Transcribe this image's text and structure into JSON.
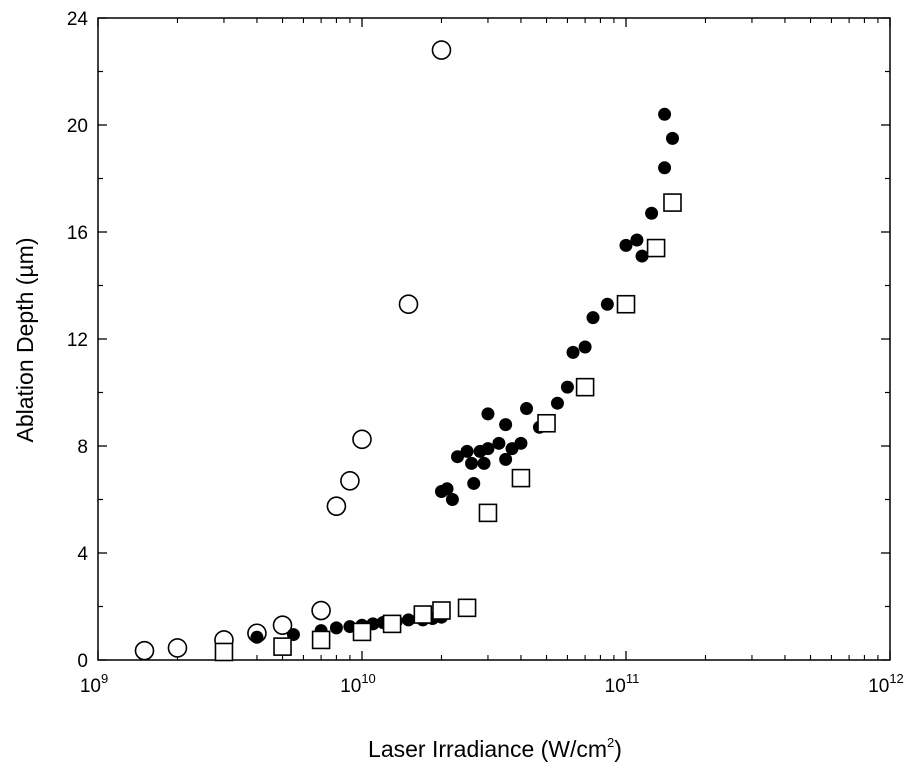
{
  "chart_data": {
    "type": "scatter",
    "xlabel": "Laser Irradiance (W/cm²)",
    "xlabel_parts": {
      "main": "Laser Irradiance (W/cm",
      "sup": "2",
      "close": ")"
    },
    "ylabel": "Ablation Depth (µm)",
    "x_scale": "log",
    "xlim": [
      1000000000.0,
      1000000000000.0
    ],
    "ylim": [
      0,
      24
    ],
    "grid": false,
    "x_ticks": [
      {
        "value": 1000000000.0,
        "base": "10",
        "exp": "9"
      },
      {
        "value": 10000000000.0,
        "base": "10",
        "exp": "10"
      },
      {
        "value": 100000000000.0,
        "base": "10",
        "exp": "11"
      },
      {
        "value": 1000000000000.0,
        "base": "10",
        "exp": "12"
      }
    ],
    "y_ticks": [
      {
        "value": 0,
        "label": "0"
      },
      {
        "value": 4,
        "label": "4"
      },
      {
        "value": 8,
        "label": "8"
      },
      {
        "value": 12,
        "label": "12"
      },
      {
        "value": 16,
        "label": "16"
      },
      {
        "value": 20,
        "label": "20"
      },
      {
        "value": 24,
        "label": "24"
      }
    ],
    "series": [
      {
        "marker": "open-circle",
        "points": [
          [
            1500000000.0,
            0.35
          ],
          [
            2000000000.0,
            0.45
          ],
          [
            3000000000.0,
            0.75
          ],
          [
            4000000000.0,
            1.0
          ],
          [
            5000000000.0,
            1.3
          ],
          [
            7000000000.0,
            1.85
          ],
          [
            8000000000.0,
            5.75
          ],
          [
            9000000000.0,
            6.7
          ],
          [
            10000000000.0,
            8.25
          ],
          [
            15000000000.0,
            13.3
          ],
          [
            20000000000.0,
            22.8
          ]
        ]
      },
      {
        "marker": "filled-circle",
        "points": [
          [
            4000000000.0,
            0.85
          ],
          [
            5500000000.0,
            0.95
          ],
          [
            7000000000.0,
            1.1
          ],
          [
            8000000000.0,
            1.2
          ],
          [
            9000000000.0,
            1.25
          ],
          [
            10000000000.0,
            1.3
          ],
          [
            11000000000.0,
            1.35
          ],
          [
            12000000000.0,
            1.4
          ],
          [
            13500000000.0,
            1.45
          ],
          [
            15000000000.0,
            1.5
          ],
          [
            17000000000.0,
            1.5
          ],
          [
            18500000000.0,
            1.55
          ],
          [
            20000000000.0,
            1.6
          ],
          [
            20000000000.0,
            6.3
          ],
          [
            21000000000.0,
            6.4
          ],
          [
            22000000000.0,
            6.0
          ],
          [
            23000000000.0,
            7.6
          ],
          [
            25000000000.0,
            7.8
          ],
          [
            26000000000.0,
            7.35
          ],
          [
            26500000000.0,
            6.6
          ],
          [
            28000000000.0,
            7.8
          ],
          [
            29000000000.0,
            7.35
          ],
          [
            30000000000.0,
            7.9
          ],
          [
            30000000000.0,
            9.2
          ],
          [
            33000000000.0,
            8.1
          ],
          [
            35000000000.0,
            7.5
          ],
          [
            35000000000.0,
            8.8
          ],
          [
            37000000000.0,
            7.9
          ],
          [
            40000000000.0,
            8.1
          ],
          [
            42000000000.0,
            9.4
          ],
          [
            47000000000.0,
            8.7
          ],
          [
            55000000000.0,
            9.6
          ],
          [
            60000000000.0,
            10.2
          ],
          [
            63000000000.0,
            11.5
          ],
          [
            70000000000.0,
            11.7
          ],
          [
            75000000000.0,
            12.8
          ],
          [
            85000000000.0,
            13.3
          ],
          [
            100000000000.0,
            15.5
          ],
          [
            110000000000.0,
            15.7
          ],
          [
            115000000000.0,
            15.1
          ],
          [
            125000000000.0,
            16.7
          ],
          [
            140000000000.0,
            18.4
          ],
          [
            140000000000.0,
            20.4
          ],
          [
            150000000000.0,
            19.5
          ]
        ]
      },
      {
        "marker": "open-square",
        "points": [
          [
            3000000000.0,
            0.3
          ],
          [
            5000000000.0,
            0.5
          ],
          [
            7000000000.0,
            0.75
          ],
          [
            10000000000.0,
            1.05
          ],
          [
            13000000000.0,
            1.35
          ],
          [
            17000000000.0,
            1.7
          ],
          [
            20000000000.0,
            1.85
          ],
          [
            25000000000.0,
            1.95
          ],
          [
            30000000000.0,
            5.5
          ],
          [
            40000000000.0,
            6.8
          ],
          [
            50000000000.0,
            8.85
          ],
          [
            70000000000.0,
            10.2
          ],
          [
            100000000000.0,
            13.3
          ],
          [
            130000000000.0,
            15.4
          ],
          [
            150000000000.0,
            17.1
          ]
        ]
      }
    ]
  }
}
